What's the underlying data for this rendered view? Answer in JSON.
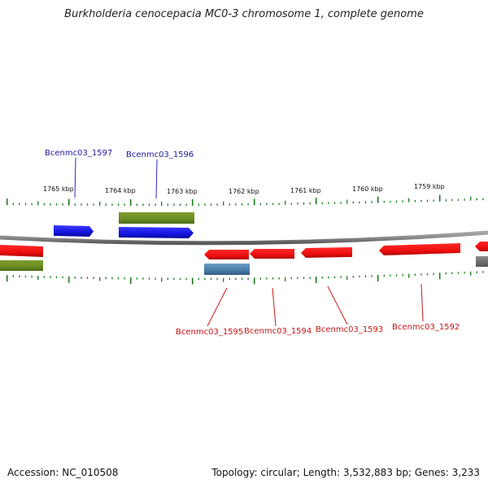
{
  "title": "Burkholderia cenocepacia MC0-3 chromosome 1, complete genome",
  "footer": {
    "accession": "Accession: NC_010508",
    "topology": "Topology: circular; Length: 3,532,883 bp; Genes: 3,233"
  },
  "scale_labels": [
    "1765 kbp",
    "1764 kbp",
    "1763 kbp",
    "1762 kbp",
    "1761 kbp",
    "1760 kbp",
    "1759 kbp"
  ],
  "gene_labels_top": [
    "Bcenmc03_1597",
    "Bcenmc03_1596"
  ],
  "gene_labels_bottom": [
    "Bcenmc03_1595",
    "Bcenmc03_1594",
    "Bcenmc03_1593",
    "Bcenmc03_1592"
  ],
  "colors": {
    "forward_gene": "#1515e8",
    "reverse_gene": "#ee1111",
    "olive_feature": "#6b8c22",
    "steel_feature": "#4a7ba8",
    "grey_feature": "#6e6e6e",
    "backbone": "#8a8a8a",
    "ticks": "#1a7a1a",
    "top_label": "#1a1aa0",
    "bottom_label": "#c81414"
  }
}
